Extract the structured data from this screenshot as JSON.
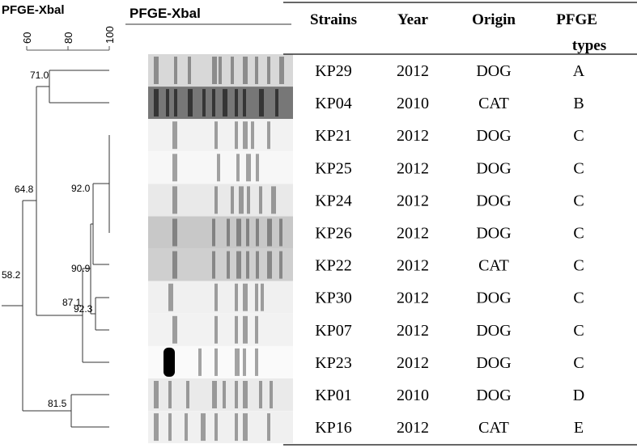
{
  "dendrogram": {
    "title": "PFGE-Xbal",
    "scale_ticks": [
      60,
      80,
      100
    ],
    "node_labels": [
      "71.0",
      "64.8",
      "92.0",
      "90.9",
      "87.1",
      "92.3",
      "58.2",
      "81.5"
    ]
  },
  "gel": {
    "title": "PFGE-Xbal"
  },
  "table": {
    "headers": [
      "Strains",
      "Year",
      "Origin",
      [
        "PFGE",
        "types"
      ]
    ],
    "rows": [
      [
        "KP29",
        "2012",
        "DOG",
        "A"
      ],
      [
        "KP04",
        "2010",
        "CAT",
        "B"
      ],
      [
        "KP21",
        "2012",
        "DOG",
        "C"
      ],
      [
        "KP25",
        "2012",
        "DOG",
        "C"
      ],
      [
        "KP24",
        "2012",
        "DOG",
        "C"
      ],
      [
        "KP26",
        "2012",
        "DOG",
        "C"
      ],
      [
        "KP22",
        "2012",
        "CAT",
        "C"
      ],
      [
        "KP30",
        "2012",
        "DOG",
        "C"
      ],
      [
        "KP07",
        "2012",
        "DOG",
        "C"
      ],
      [
        "KP23",
        "2012",
        "DOG",
        "C"
      ],
      [
        "KP01",
        "2010",
        "DOG",
        "D"
      ],
      [
        "KP16",
        "2012",
        "CAT",
        "E"
      ]
    ]
  }
}
